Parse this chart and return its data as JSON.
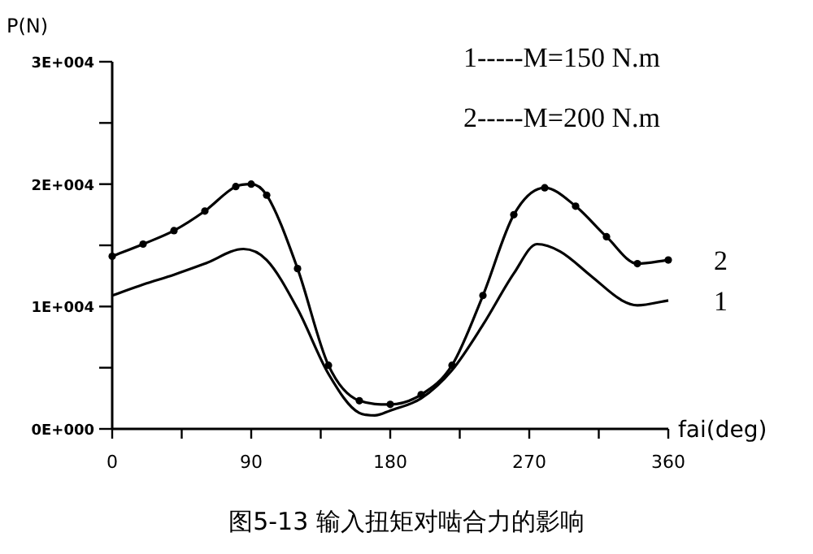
{
  "chart_data": {
    "type": "line",
    "title": "图5-13 输入扭矩对啮合力的影响",
    "xlabel": "fai(deg)",
    "ylabel": "P(N)",
    "annotations": [
      "1-----M=150 N.m",
      "2-----M=200 N.m"
    ],
    "xlim": [
      0,
      360
    ],
    "xticks": [
      0,
      {
        "value": 45,
        "label": null
      },
      90,
      {
        "value": 135,
        "label": null
      },
      180,
      {
        "value": 225,
        "label": null
      },
      270,
      {
        "value": 315,
        "label": null
      },
      360
    ],
    "ylim": [
      0,
      30000
    ],
    "yticks": [
      {
        "value": 0,
        "label": "0E+000"
      },
      {
        "value": 5000,
        "label": null
      },
      {
        "value": 10000,
        "label": "1E+004"
      },
      {
        "value": 15000,
        "label": null
      },
      {
        "value": 20000,
        "label": "2E+004"
      },
      {
        "value": 25000,
        "label": null
      },
      {
        "value": 30000,
        "label": "3E+004"
      }
    ],
    "grid": false,
    "series": [
      {
        "name": "1",
        "color": "#000000",
        "marker": "none",
        "x": [
          0,
          20,
          40,
          60,
          85,
          100,
          120,
          140,
          160,
          170,
          180,
          200,
          220,
          240,
          260,
          275,
          290,
          310,
          330,
          340,
          360
        ],
        "values": [
          10900,
          11800,
          12600,
          13500,
          14700,
          13800,
          9800,
          4500,
          1300,
          1100,
          1500,
          2500,
          4800,
          8500,
          12700,
          15100,
          14500,
          12500,
          10500,
          10100,
          10500
        ]
      },
      {
        "name": "2",
        "color": "#000000",
        "marker": "circle",
        "x": [
          0,
          20,
          40,
          60,
          80,
          90,
          100,
          120,
          140,
          160,
          180,
          200,
          220,
          240,
          260,
          280,
          300,
          320,
          340,
          360
        ],
        "values": [
          14100,
          15100,
          16200,
          17800,
          19800,
          20000,
          19100,
          13100,
          5200,
          2300,
          2000,
          2800,
          5200,
          10900,
          17500,
          19700,
          18200,
          15700,
          13500,
          13800
        ]
      }
    ]
  }
}
